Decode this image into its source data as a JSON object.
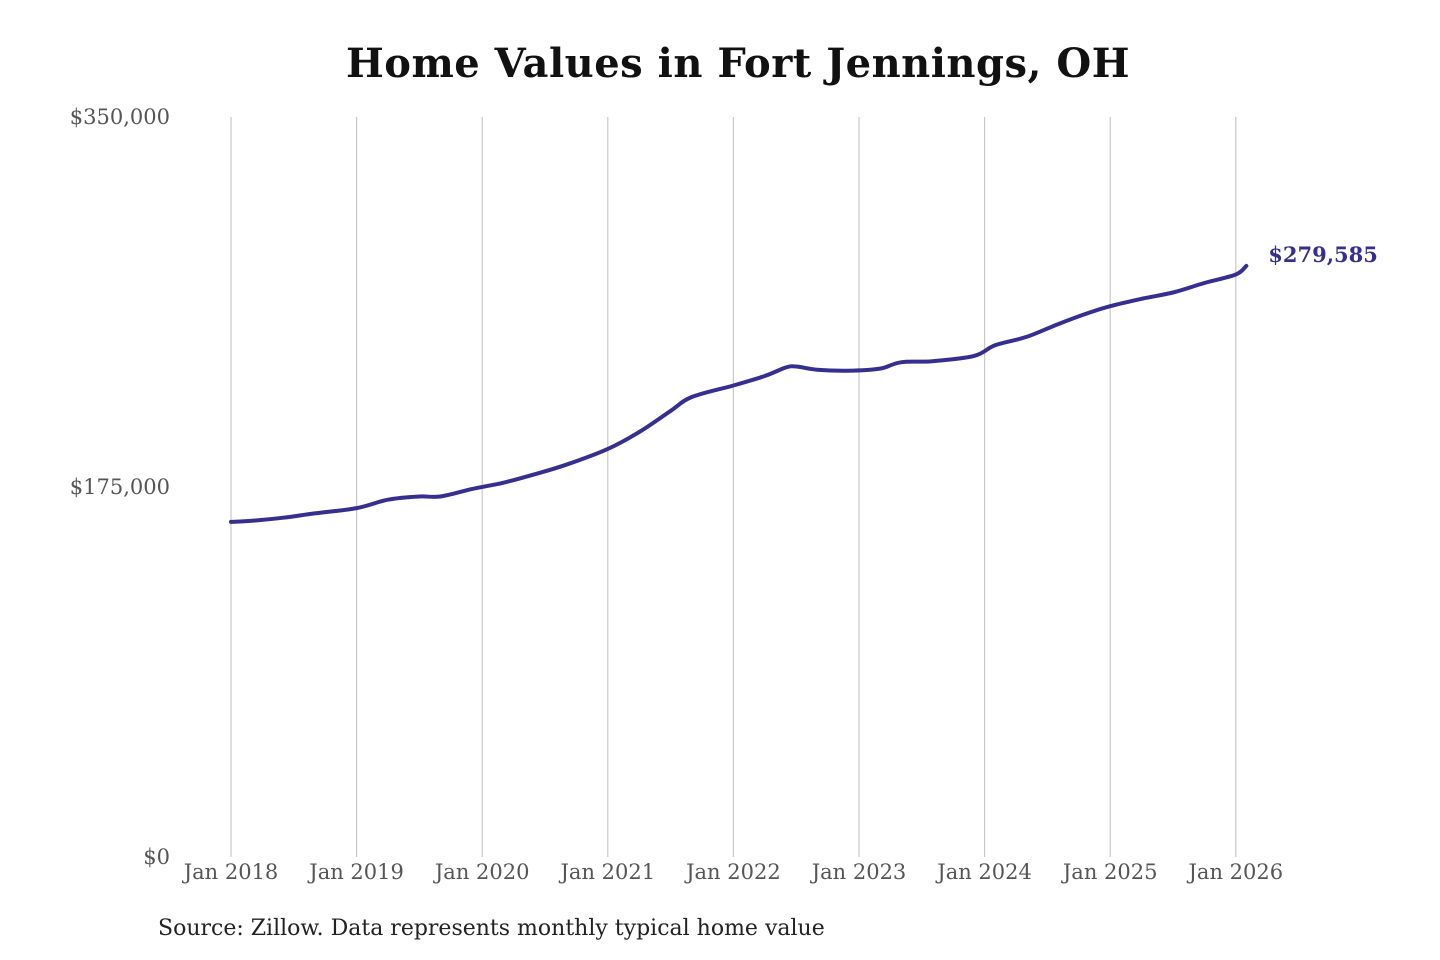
{
  "chart_data": {
    "type": "line",
    "title": "Home Values in Fort Jennings, OH",
    "xlabel": "",
    "ylabel": "",
    "ylim": [
      0,
      350000
    ],
    "y_ticks": [
      "$0",
      "$175,000",
      "$350,000"
    ],
    "x_ticks": [
      "Jan 2018",
      "Jan 2019",
      "Jan 2020",
      "Jan 2021",
      "Jan 2022",
      "Jan 2023",
      "Jan 2024",
      "Jan 2025",
      "Jan 2026"
    ],
    "grid": "vertical",
    "line_color": "#35308f",
    "series": [
      {
        "x": [
          "2018-01",
          "2018-03",
          "2018-06",
          "2018-09",
          "2019-01",
          "2019-04",
          "2019-07",
          "2019-09",
          "2019-12",
          "2020-03",
          "2020-06",
          "2020-09",
          "2021-01",
          "2021-04",
          "2021-07",
          "2021-09",
          "2022-01",
          "2022-04",
          "2022-06",
          "2022-07",
          "2022-09",
          "2022-12",
          "2023-03",
          "2023-05",
          "2023-08",
          "2023-12",
          "2024-02",
          "2024-05",
          "2024-08",
          "2024-11",
          "2025-01",
          "2025-04",
          "2025-07",
          "2025-10",
          "2026-01",
          "2026-02"
        ],
        "values": [
          158500,
          159000,
          160500,
          162500,
          165000,
          169000,
          170500,
          170500,
          174000,
          177000,
          181000,
          185500,
          193000,
          201000,
          211000,
          217500,
          223000,
          227500,
          231500,
          232000,
          230500,
          230000,
          231000,
          234000,
          234500,
          237000,
          242000,
          246000,
          252000,
          257500,
          260500,
          264000,
          267000,
          271500,
          275500,
          279585
        ]
      }
    ],
    "end_label": "$279,585",
    "source": "Source: Zillow. Data represents monthly typical home value"
  }
}
